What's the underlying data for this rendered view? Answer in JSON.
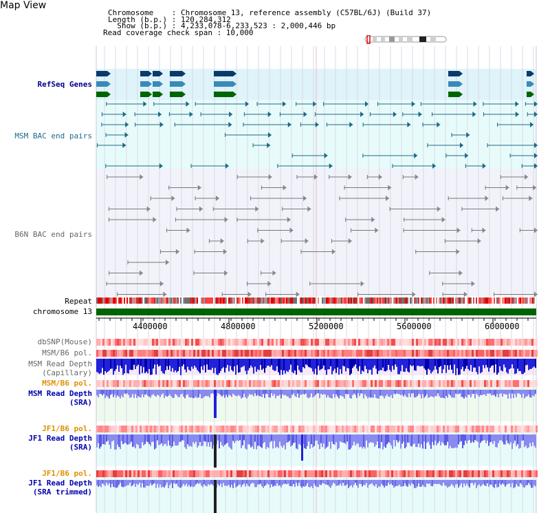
{
  "header": {
    "title": "Map View",
    "chromosome_line": "Chromosome    : Chromosome 13, reference assembly (C57BL/6J) (Build 37)",
    "length_line": "Length (b.p.) : 120,284,312",
    "show_line": "  Show (b.p.) : 4,233,078-6,233,523 : 2,000,446 bp",
    "coverage_line": "Read coverage check span : 10,000"
  },
  "tracks": {
    "refseq": "RefSeq Genes",
    "msm_bac": "MSM BAC end pairs",
    "b6n_bac": "B6N BAC end pairs",
    "repeat": "Repeat",
    "chromosome": "chromosome 13",
    "dbsnp": "dbSNP(Mouse)",
    "msm_b6_pol_1": "MSM/B6 pol.",
    "msm_depth_cap_1": "MSM Read Depth",
    "msm_depth_cap_2": "(Capillary)",
    "msm_b6_pol_2": "MSM/B6 pol.",
    "msm_depth_sra_1": "MSM Read Depth",
    "msm_depth_sra_2": "(SRA)",
    "jf1_b6_pol_1": "JF1/B6 pol.",
    "jf1_depth_1": "JF1 Read Depth",
    "jf1_depth_2": "(SRA)",
    "jf1_b6_pol_2": "JF1/B6 pol.",
    "jf1_trim_1": "JF1 Read Depth",
    "jf1_trim_2": "(SRA trimmed)"
  },
  "axis": {
    "ticks": [
      "4400000",
      "4800000",
      "5200000",
      "5600000",
      "6000000"
    ]
  },
  "colors": {
    "refseq_dark": "#0a3a6a",
    "refseq_mid": "#3a8ab8",
    "refseq_green": "#006400",
    "msm_bac": "#1a6a86",
    "b6n_bac": "#666666",
    "chromosome": "#006400",
    "depth_blue": "#2a2ae0",
    "depth_light": "#8a8af0"
  }
}
